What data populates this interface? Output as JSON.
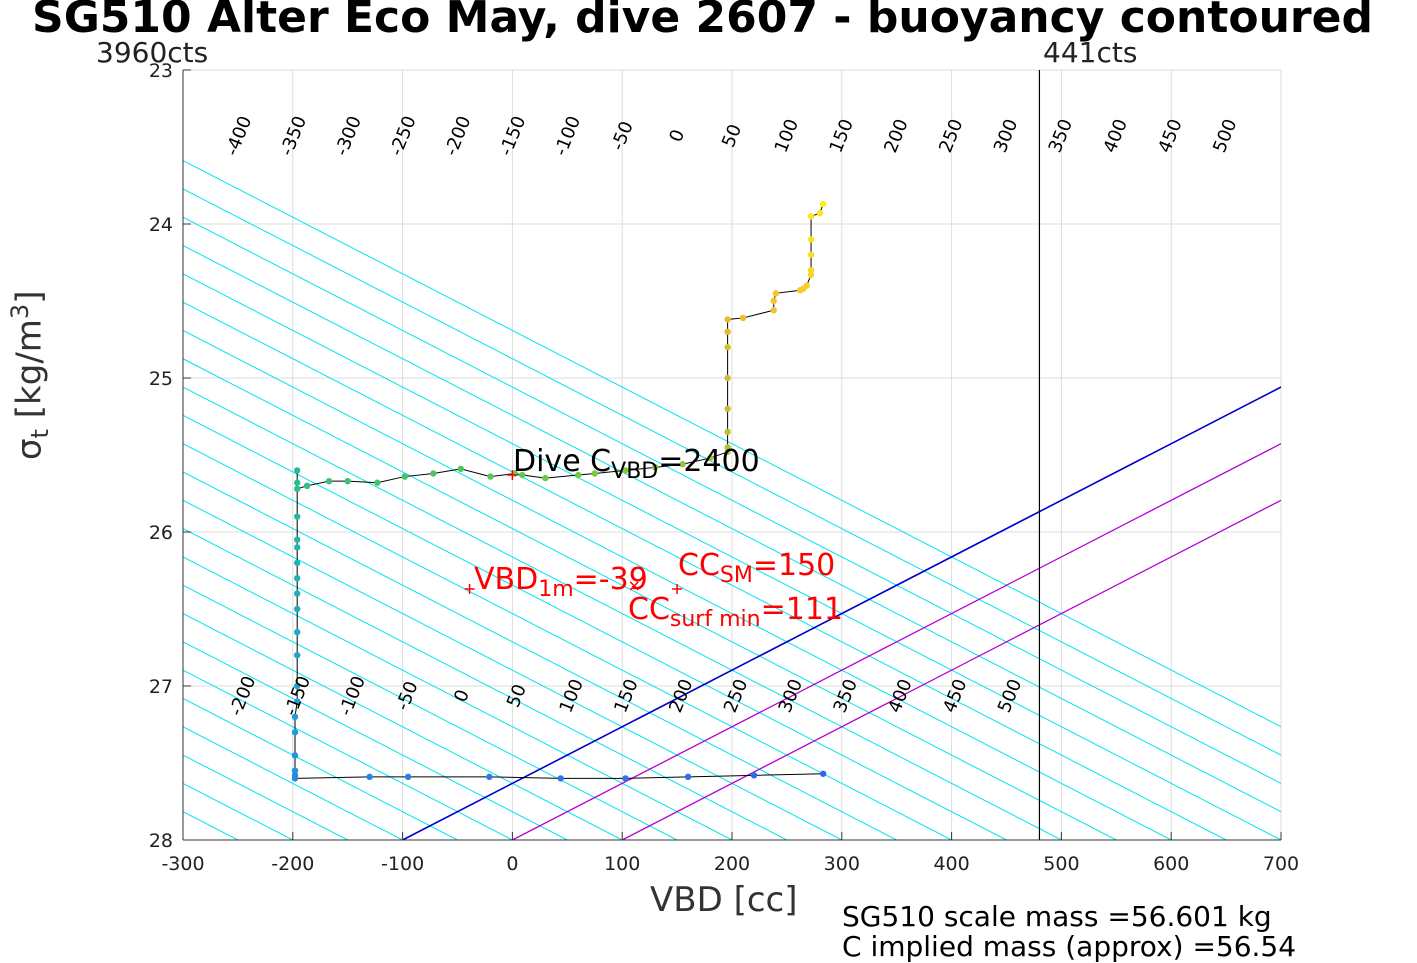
{
  "title": "SG510 Alter Eco May, dive 2607 - buoyancy contoured",
  "left_counts_label": "3960cts",
  "right_counts_label": "441cts",
  "colors": {
    "contour": "#00e5ee",
    "zero_line": "#0000cc",
    "sm_lines": "#b400d6",
    "annotation": "#ff0000",
    "trace": "#000000",
    "grid": "#dddddd"
  },
  "annotations": {
    "dive_c": {
      "prefix": "Dive C",
      "sub": "VBD",
      "suffix": "=2400"
    },
    "vbd_1m": {
      "prefix": "VBD",
      "sub": "1m",
      "suffix": "=-39"
    },
    "cc_sm": {
      "prefix": "CC",
      "sub": "SM",
      "suffix": "=150"
    },
    "cc_surf_min": {
      "prefix": "CC",
      "sub": "surf min",
      "suffix": "=111"
    }
  },
  "info": {
    "line1": "SG510 scale mass =56.601 kg",
    "line2": "C      implied mass (approx) =56.54"
  },
  "chart_data": {
    "type": "scatter",
    "title": "SG510 Alter Eco May, dive 2607 - buoyancy contoured",
    "xlabel": "VBD [cc]",
    "ylabel": {
      "main": "σ",
      "sub": "t",
      "unit_pre": "[kg/m",
      "unit_sup": "3",
      "unit_post": "]"
    },
    "xlim": [
      -300,
      700
    ],
    "ylim": [
      23,
      28
    ],
    "y_reversed": true,
    "grid": true,
    "xticks": [
      -300,
      -200,
      -100,
      0,
      100,
      200,
      300,
      400,
      500,
      600,
      700
    ],
    "yticks": [
      23,
      24,
      25,
      26,
      27,
      28
    ],
    "vertical_line_x": 480,
    "contours": {
      "top_labels": [
        -400,
        -350,
        -300,
        -250,
        -200,
        -150,
        -100,
        -50,
        0,
        50,
        100,
        150,
        200,
        250,
        300,
        350,
        400,
        450,
        500
      ],
      "bottom_labels": [
        -200,
        -150,
        -100,
        -50,
        0,
        50,
        100,
        150,
        200,
        250,
        300,
        350,
        400,
        450,
        500
      ],
      "x_at_sigma_28": [
        -650,
        -600,
        -550,
        -500,
        -450,
        -400,
        -350,
        -300,
        -250,
        -200,
        -150,
        -100,
        -50,
        0,
        50,
        100,
        150,
        200,
        250,
        300,
        350,
        400,
        450,
        500,
        550,
        600,
        650,
        700,
        750,
        800,
        850,
        900
      ],
      "slope_cc_per_kgm3": 272,
      "zero_line_value": -100,
      "sm_line_values": [
        0,
        100
      ]
    },
    "markers": {
      "vbd_1m": [
        -39,
        26.37
      ],
      "cc_sm": [
        150,
        26.37
      ],
      "cc_surf_min": [
        111,
        26.35
      ],
      "dive_c": [
        0,
        25.63
      ]
    },
    "series": [
      {
        "x": [
          283,
          280,
          272,
          272,
          272,
          272,
          272,
          268,
          265,
          262,
          240,
          238,
          238,
          210,
          196,
          196,
          196,
          196,
          196,
          196,
          196
        ],
        "y": [
          23.87,
          23.93,
          23.95,
          24.1,
          24.2,
          24.3,
          24.33,
          24.4,
          24.42,
          24.43,
          24.45,
          24.5,
          24.56,
          24.61,
          24.62,
          24.7,
          24.8,
          25.0,
          25.2,
          25.35,
          25.45
        ]
      },
      {
        "x": [
          196,
          180,
          155,
          130,
          103,
          75,
          60,
          30,
          9,
          2,
          -20,
          -47,
          -72,
          -98,
          -123,
          -150,
          -167,
          -187,
          -196,
          -196,
          -196,
          -196,
          -196,
          -196,
          -196,
          -196,
          -196,
          -196,
          -196,
          -196,
          -196,
          -196
        ],
        "y": [
          25.48,
          25.52,
          25.56,
          25.58,
          25.6,
          25.62,
          25.63,
          25.65,
          25.63,
          25.62,
          25.64,
          25.59,
          25.62,
          25.64,
          25.68,
          25.67,
          25.67,
          25.7,
          25.72,
          25.68,
          25.6,
          25.9,
          26.05,
          26.1,
          26.2,
          26.3,
          26.4,
          26.5,
          26.65,
          26.8,
          27.0,
          27.1
        ]
      },
      {
        "x": [
          -198,
          -198,
          -198,
          -198,
          -198,
          -198,
          -130,
          -95,
          -21,
          44,
          103,
          160,
          220,
          283
        ],
        "y": [
          27.2,
          27.3,
          27.45,
          27.55,
          27.58,
          27.6,
          27.59,
          27.59,
          27.59,
          27.6,
          27.6,
          27.59,
          27.58,
          27.57
        ]
      }
    ]
  }
}
